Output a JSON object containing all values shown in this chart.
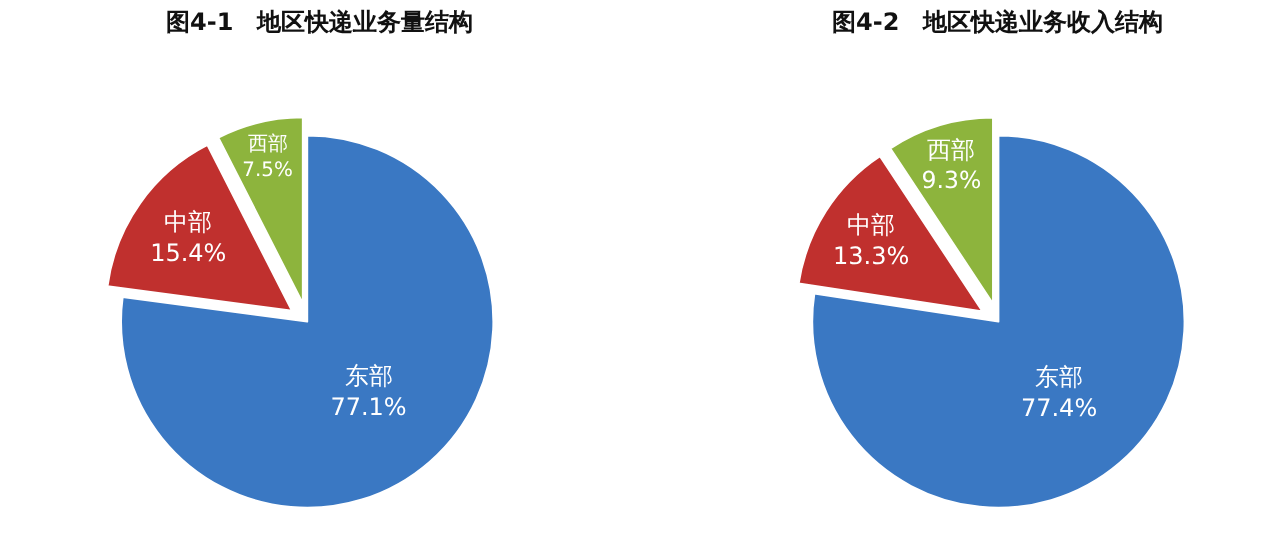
{
  "chart_data": [
    {
      "type": "pie",
      "title": "图4-1　地区快递业务量结构",
      "categories": [
        "东部",
        "中部",
        "西部"
      ],
      "values": [
        77.1,
        15.4,
        7.5
      ],
      "value_labels": [
        "77.1%",
        "15.4%",
        "7.5%"
      ],
      "colors": [
        "#3a78c3",
        "#c0302e",
        "#8db43d"
      ],
      "legend": false
    },
    {
      "type": "pie",
      "title": "图4-2　地区快递业务收入结构",
      "categories": [
        "东部",
        "中部",
        "西部"
      ],
      "values": [
        77.4,
        13.3,
        9.3
      ],
      "value_labels": [
        "77.4%",
        "13.3%",
        "9.3%"
      ],
      "colors": [
        "#3a78c3",
        "#c0302e",
        "#8db43d"
      ],
      "legend": false
    }
  ]
}
